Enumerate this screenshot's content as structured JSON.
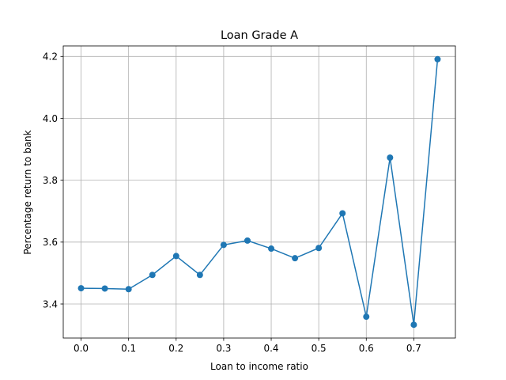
{
  "chart_data": {
    "type": "line",
    "title": "Loan Grade A",
    "xlabel": "Loan to income ratio",
    "ylabel": "Percentage return to bank",
    "x": [
      0.0,
      0.05,
      0.1,
      0.15,
      0.2,
      0.25,
      0.3,
      0.35,
      0.4,
      0.45,
      0.5,
      0.55,
      0.6,
      0.65,
      0.7,
      0.75
    ],
    "series": [
      {
        "values": [
          3.451,
          3.45,
          3.448,
          3.494,
          3.555,
          3.494,
          3.591,
          3.605,
          3.579,
          3.548,
          3.581,
          3.693,
          3.359,
          3.873,
          3.333,
          4.191
        ],
        "color": "#1f77b4"
      }
    ],
    "xlim": [
      -0.0375,
      0.7875
    ],
    "ylim": [
      3.29,
      4.234
    ],
    "xticks": [
      "0.0",
      "0.1",
      "0.2",
      "0.3",
      "0.4",
      "0.5",
      "0.6",
      "0.7"
    ],
    "yticks": [
      "3.4",
      "3.6",
      "3.8",
      "4.0",
      "4.2"
    ],
    "grid": true,
    "markers": "circle"
  }
}
